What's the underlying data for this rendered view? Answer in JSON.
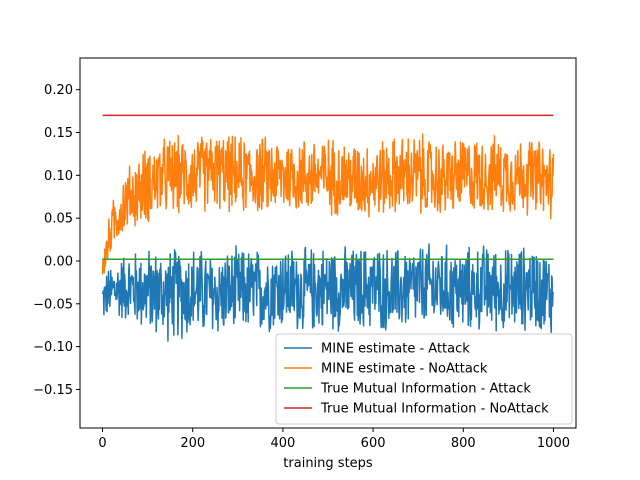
{
  "chart_data": {
    "type": "line",
    "title": "",
    "xlabel": "training steps",
    "ylabel": "",
    "xlim": [
      -50,
      1050
    ],
    "ylim": [
      -0.195,
      0.237
    ],
    "xticks": [
      0,
      200,
      400,
      600,
      800,
      1000
    ],
    "xtick_labels": [
      "0",
      "200",
      "400",
      "600",
      "800",
      "1000"
    ],
    "yticks": [
      -0.15,
      -0.1,
      -0.05,
      0.0,
      0.05,
      0.1,
      0.15,
      0.2
    ],
    "ytick_labels": [
      "−0.15",
      "−0.10",
      "−0.05",
      "0.00",
      "0.05",
      "0.10",
      "0.15",
      "0.20"
    ],
    "grid": false,
    "legend_position": "lower-right",
    "series": [
      {
        "name": "MINE estimate - Attack",
        "color": "#1f77b4",
        "noisy": true,
        "x": [
          0,
          20,
          50,
          100,
          150,
          200,
          250,
          300,
          350,
          400,
          450,
          500,
          550,
          600,
          650,
          700,
          750,
          800,
          850,
          900,
          950,
          1000
        ],
        "center": [
          -0.045,
          -0.035,
          -0.03,
          -0.035,
          -0.04,
          -0.035,
          -0.04,
          -0.035,
          -0.035,
          -0.03,
          -0.035,
          -0.03,
          -0.035,
          -0.03,
          -0.035,
          -0.03,
          -0.03,
          -0.035,
          -0.03,
          -0.035,
          -0.03,
          -0.04
        ],
        "spread": [
          0.03,
          0.035,
          0.045,
          0.055,
          0.06,
          0.06,
          0.055,
          0.055,
          0.055,
          0.055,
          0.055,
          0.055,
          0.055,
          0.055,
          0.055,
          0.055,
          0.055,
          0.055,
          0.055,
          0.055,
          0.055,
          0.055
        ]
      },
      {
        "name": "MINE estimate - NoAttack",
        "color": "#ff7f0e",
        "noisy": true,
        "x": [
          0,
          20,
          50,
          100,
          150,
          200,
          250,
          300,
          350,
          400,
          450,
          500,
          550,
          600,
          650,
          700,
          750,
          800,
          850,
          900,
          950,
          1000
        ],
        "center": [
          -0.01,
          0.04,
          0.07,
          0.09,
          0.1,
          0.1,
          0.105,
          0.1,
          0.1,
          0.1,
          0.1,
          0.1,
          0.095,
          0.095,
          0.1,
          0.1,
          0.095,
          0.1,
          0.1,
          0.1,
          0.1,
          0.09
        ],
        "spread": [
          0.02,
          0.03,
          0.04,
          0.05,
          0.05,
          0.05,
          0.05,
          0.05,
          0.05,
          0.05,
          0.05,
          0.05,
          0.05,
          0.05,
          0.05,
          0.055,
          0.05,
          0.05,
          0.05,
          0.05,
          0.05,
          0.05
        ]
      },
      {
        "name": "True Mutual Information - Attack",
        "color": "#2ca02c",
        "noisy": false,
        "x": [
          0,
          1000
        ],
        "values": [
          0.002,
          0.002
        ]
      },
      {
        "name": "True Mutual Information - NoAttack",
        "color": "#d62728",
        "noisy": false,
        "x": [
          0,
          1000
        ],
        "values": [
          0.17,
          0.17
        ]
      }
    ]
  }
}
